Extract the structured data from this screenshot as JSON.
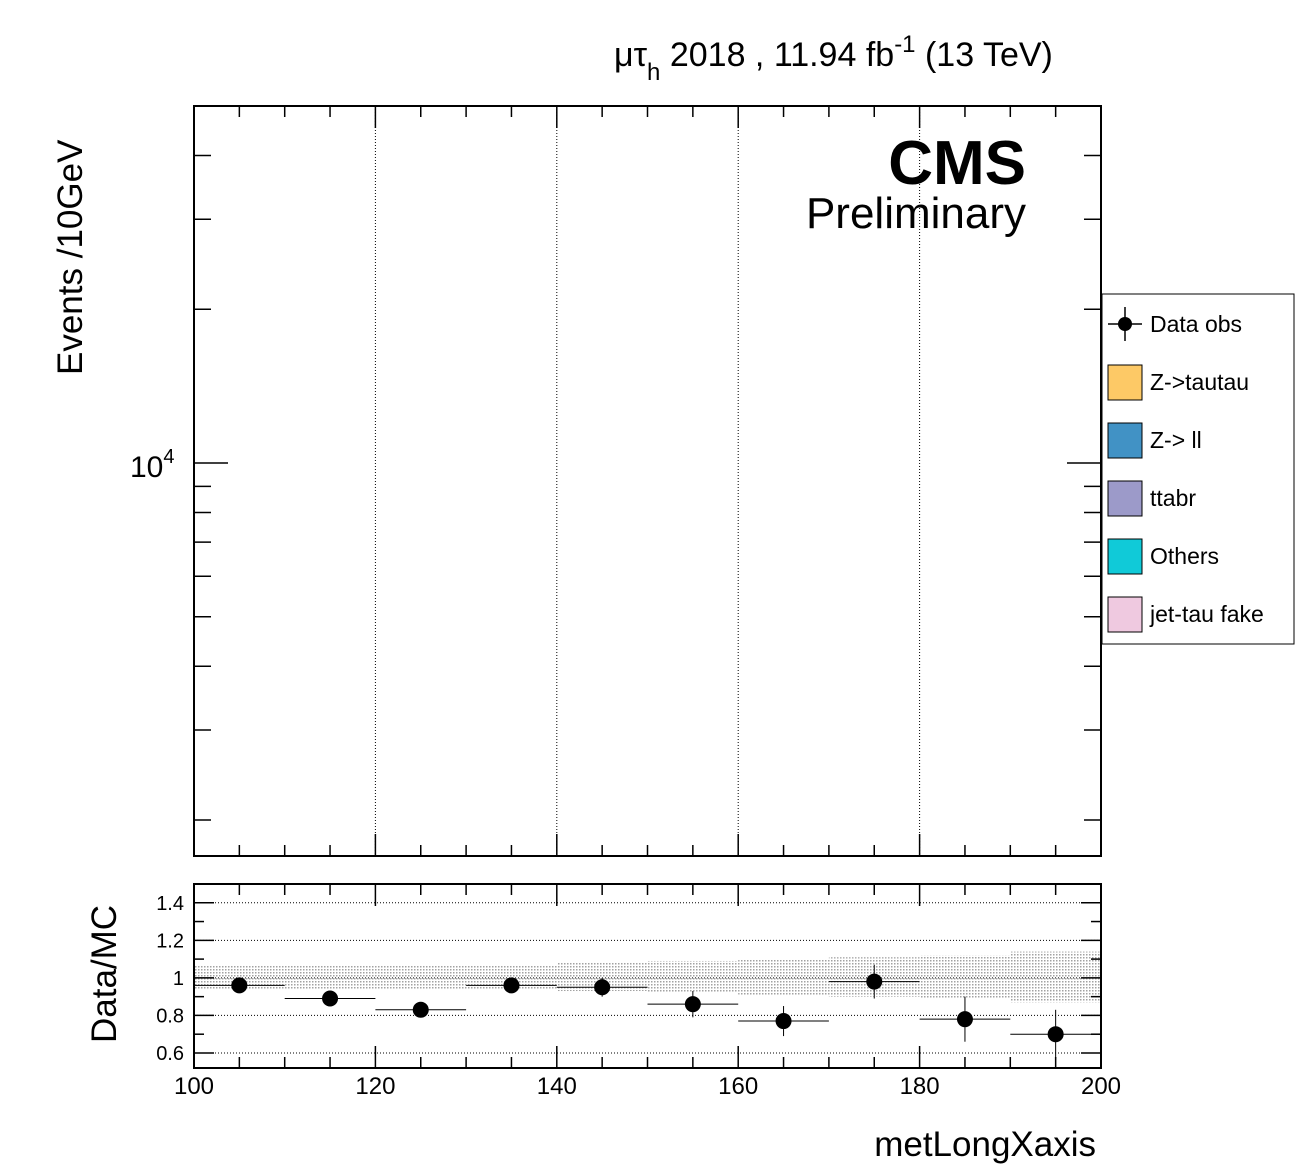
{
  "header": {
    "channel_mu": "μτ",
    "channel_sub": "h",
    "lumi_text": " 2018 , 11.94 fb",
    "lumi_sup": "-1",
    "energy": " (13 TeV)"
  },
  "cms_label": "CMS",
  "cms_sublabel": "Preliminary",
  "colors": {
    "ztautau": "#fdc966",
    "zll": "#4192c5",
    "ttbar": "#9c9ac9",
    "others": "#10cad8",
    "jetfake": "#efc9e0",
    "data": "#000000"
  },
  "chart_data": [
    {
      "type": "line",
      "title": "",
      "xlabel": "",
      "ylabel": "Events /10GeV",
      "xlim": [
        100,
        200
      ],
      "ylim_log": [
        1700,
        50000
      ],
      "log_y": true,
      "ytick_labels": [
        {
          "base": "10",
          "exp": "4",
          "value": 10000
        }
      ],
      "grid_x": [
        120,
        140,
        160,
        180
      ],
      "legend": {
        "placement": "right",
        "entries": [
          {
            "label": "Data obs",
            "kind": "marker",
            "color_key": "data"
          },
          {
            "label": "Z->tautau",
            "kind": "box",
            "color_key": "ztautau"
          },
          {
            "label": "Z-> ll",
            "kind": "box",
            "color_key": "zll"
          },
          {
            "label": "ttabr",
            "kind": "box",
            "color_key": "ttbar"
          },
          {
            "label": "Others",
            "kind": "box",
            "color_key": "others"
          },
          {
            "label": "jet-tau fake",
            "kind": "box",
            "color_key": "jetfake"
          }
        ]
      }
    },
    {
      "type": "scatter",
      "xlabel": "metLongXaxis",
      "ylabel": "Data/MC",
      "xlim": [
        100,
        200
      ],
      "ylim": [
        0.52,
        1.5
      ],
      "yticks": [
        {
          "value": 0.6,
          "label": "0.6"
        },
        {
          "value": 0.8,
          "label": "0.8"
        },
        {
          "value": 1.0,
          "label": "1"
        },
        {
          "value": 1.2,
          "label": "1.2"
        },
        {
          "value": 1.4,
          "label": "1.4"
        }
      ],
      "xticks": [
        {
          "value": 100,
          "label": "100"
        },
        {
          "value": 120,
          "label": "120"
        },
        {
          "value": 140,
          "label": "140"
        },
        {
          "value": 160,
          "label": "160"
        },
        {
          "value": 180,
          "label": "180"
        },
        {
          "value": 200,
          "label": "200"
        }
      ],
      "points": [
        {
          "x": 105,
          "y": 0.96,
          "yerr": 0.04
        },
        {
          "x": 115,
          "y": 0.89,
          "yerr": 0.0
        },
        {
          "x": 125,
          "y": 0.83,
          "yerr": 0.03
        },
        {
          "x": 135,
          "y": 0.96,
          "yerr": 0.04
        },
        {
          "x": 145,
          "y": 0.95,
          "yerr": 0.05
        },
        {
          "x": 155,
          "y": 0.86,
          "yerr": 0.07
        },
        {
          "x": 165,
          "y": 0.77,
          "yerr": 0.08
        },
        {
          "x": 175,
          "y": 0.98,
          "yerr": 0.09
        },
        {
          "x": 185,
          "y": 0.78,
          "yerr": 0.12
        },
        {
          "x": 195,
          "y": 0.7,
          "yerr": 0.13
        }
      ],
      "uncertainty_band": [
        {
          "x0": 100,
          "x1": 110,
          "lo": 0.94,
          "hi": 1.07
        },
        {
          "x0": 110,
          "x1": 120,
          "lo": 0.94,
          "hi": 1.07
        },
        {
          "x0": 120,
          "x1": 130,
          "lo": 0.94,
          "hi": 1.07
        },
        {
          "x0": 130,
          "x1": 140,
          "lo": 0.94,
          "hi": 1.07
        },
        {
          "x0": 140,
          "x1": 150,
          "lo": 0.93,
          "hi": 1.08
        },
        {
          "x0": 150,
          "x1": 160,
          "lo": 0.92,
          "hi": 1.09
        },
        {
          "x0": 160,
          "x1": 170,
          "lo": 0.91,
          "hi": 1.1
        },
        {
          "x0": 170,
          "x1": 180,
          "lo": 0.9,
          "hi": 1.11
        },
        {
          "x0": 180,
          "x1": 190,
          "lo": 0.89,
          "hi": 1.12
        },
        {
          "x0": 190,
          "x1": 200,
          "lo": 0.87,
          "hi": 1.14
        }
      ],
      "grid_y": [
        0.6,
        0.8,
        1.0,
        1.2,
        1.4
      ]
    }
  ]
}
